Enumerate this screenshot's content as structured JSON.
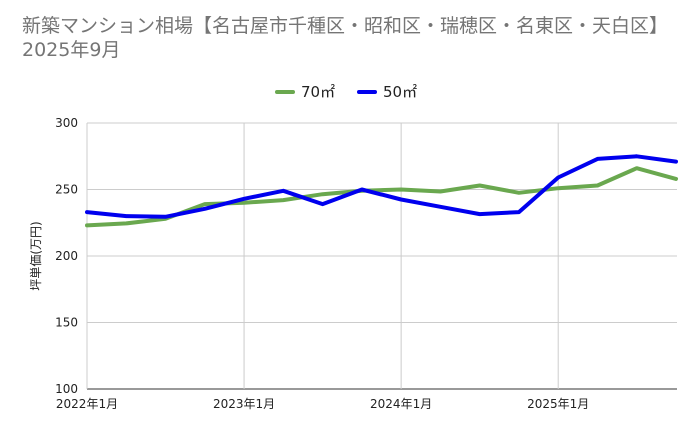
{
  "chart_data": {
    "type": "line",
    "title": "新築マンション相場【名古屋市千種区・昭和区・瑞穂区・名東区・天白区】 2025年9月",
    "ylabel": "坪単価(万円)",
    "xlabel": "",
    "ylim": [
      100,
      300
    ],
    "yticks": [
      "300",
      "250",
      "200",
      "150",
      "100"
    ],
    "xticks": [
      "2022年1月",
      "2023年1月",
      "2024年1月",
      "2025年1月"
    ],
    "grid": true,
    "legend": "top-center",
    "x": [
      "2022-01",
      "2022-04",
      "2022-07",
      "2022-10",
      "2023-01",
      "2023-04",
      "2023-07",
      "2023-10",
      "2024-01",
      "2024-04",
      "2024-07",
      "2024-10",
      "2025-01",
      "2025-04",
      "2025-07",
      "2025-09"
    ],
    "series": [
      {
        "name": "70㎡",
        "color": "#6aa84f",
        "values": [
          223,
          224.5,
          228,
          239,
          240,
          242,
          246.5,
          249,
          250,
          248.5,
          253,
          247.5,
          251,
          253,
          266,
          258
        ]
      },
      {
        "name": "50㎡",
        "color": "#0000ee",
        "values": [
          233,
          230,
          229.5,
          235.5,
          243,
          249,
          239,
          250,
          242.5,
          237,
          231.5,
          233,
          259,
          273,
          275,
          271
        ]
      }
    ]
  }
}
